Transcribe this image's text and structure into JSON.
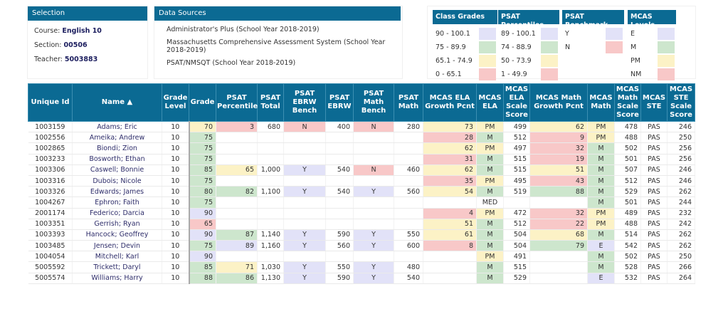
{
  "selection": {
    "title": "Selection",
    "course_label": "Course:",
    "course": "English 10",
    "section_label": "Section:",
    "section": "00506",
    "teacher_label": "Teacher:",
    "teacher": "5003883"
  },
  "data_sources": {
    "title": "Data Sources",
    "items": [
      "Administrator's Plus (School Year 2018-2019)",
      "Massachusetts Comprehensive Assessment System (School Year 2018-2019)",
      "PSAT/NMSQT (School Year 2018-2019)"
    ]
  },
  "legends": [
    {
      "title": "Class Grades",
      "items": [
        {
          "label": "90 - 100.1",
          "color": "#e2e2f8"
        },
        {
          "label": "75 - 89.9",
          "color": "#cde6cd"
        },
        {
          "label": "65.1 - 74.9",
          "color": "#fcf2c6"
        },
        {
          "label": "0 - 65.1",
          "color": "#f8c8c8"
        }
      ]
    },
    {
      "title": "PSAT Percentiles",
      "items": [
        {
          "label": "89 - 100.1",
          "color": "#e2e2f8"
        },
        {
          "label": "74 - 88.9",
          "color": "#cde6cd"
        },
        {
          "label": "50 - 73.9",
          "color": "#fcf2c6"
        },
        {
          "label": "1 - 49.9",
          "color": "#f8c8c8"
        }
      ]
    },
    {
      "title": "PSAT Benchmark",
      "items": [
        {
          "label": "Y",
          "color": "#e2e2f8"
        },
        {
          "label": "N",
          "color": "#f8c8c8"
        }
      ]
    },
    {
      "title": "MCAS Levels",
      "items": [
        {
          "label": "E",
          "color": "#e2e2f8"
        },
        {
          "label": "M",
          "color": "#cde6cd"
        },
        {
          "label": "PM",
          "color": "#fcf2c6"
        },
        {
          "label": "NM",
          "color": "#f8c8c8"
        }
      ]
    }
  ],
  "table": {
    "columns": [
      "Unique Id",
      "Name ▲",
      "Grade Level",
      "Grade",
      "PSAT Percentile",
      "PSAT Total",
      "PSAT EBRW Bench",
      "PSAT EBRW",
      "PSAT Math Bench",
      "PSAT Math",
      "MCAS ELA Growth Pcnt",
      "MCAS ELA",
      "MCAS ELA Scale Score",
      "MCAS Math Growth Pcnt",
      "MCAS Math",
      "MCAS Math Scale Score",
      "MCAS STE",
      "MCAS STE Scale Score"
    ],
    "rows": [
      [
        "1003159",
        "Adams; Eric",
        "10",
        "70",
        "3",
        "680",
        "N",
        "400",
        "N",
        "280",
        "73",
        "PM",
        "499",
        "62",
        "PM",
        "478",
        "PAS",
        "246"
      ],
      [
        "1002556",
        "Ameika; Andrew",
        "10",
        "75",
        "",
        "",
        "",
        "",
        "",
        "",
        "28",
        "M",
        "512",
        "9",
        "PM",
        "488",
        "PAS",
        "250"
      ],
      [
        "1002865",
        "Biondi; Zion",
        "10",
        "75",
        "",
        "",
        "",
        "",
        "",
        "",
        "62",
        "PM",
        "497",
        "32",
        "M",
        "502",
        "PAS",
        "256"
      ],
      [
        "1003233",
        "Bosworth; Ethan",
        "10",
        "75",
        "",
        "",
        "",
        "",
        "",
        "",
        "31",
        "M",
        "515",
        "19",
        "M",
        "501",
        "PAS",
        "256"
      ],
      [
        "1003306",
        "Caswell; Bonnie",
        "10",
        "85",
        "65",
        "1,000",
        "Y",
        "540",
        "N",
        "460",
        "62",
        "M",
        "515",
        "51",
        "M",
        "507",
        "PAS",
        "246"
      ],
      [
        "1003316",
        "Dubois; Nicole",
        "10",
        "75",
        "",
        "",
        "",
        "",
        "",
        "",
        "35",
        "PM",
        "495",
        "43",
        "M",
        "512",
        "PAS",
        "246"
      ],
      [
        "1003326",
        "Edwards; James",
        "10",
        "80",
        "82",
        "1,100",
        "Y",
        "540",
        "Y",
        "560",
        "54",
        "M",
        "519",
        "88",
        "M",
        "529",
        "PAS",
        "262"
      ],
      [
        "1004267",
        "Ephron; Faith",
        "10",
        "75",
        "",
        "",
        "",
        "",
        "",
        "",
        "",
        "MED",
        "",
        "",
        "M",
        "501",
        "PAS",
        "244"
      ],
      [
        "2001174",
        "Federico; Darcia",
        "10",
        "90",
        "",
        "",
        "",
        "",
        "",
        "",
        "4",
        "PM",
        "472",
        "32",
        "PM",
        "489",
        "PAS",
        "232"
      ],
      [
        "1003351",
        "Gerrish; Ryan",
        "10",
        "65",
        "",
        "",
        "",
        "",
        "",
        "",
        "51",
        "M",
        "512",
        "22",
        "PM",
        "488",
        "PAS",
        "242"
      ],
      [
        "1003393",
        "Hancock; Geoffrey",
        "10",
        "90",
        "87",
        "1,140",
        "Y",
        "590",
        "Y",
        "550",
        "61",
        "M",
        "504",
        "68",
        "M",
        "514",
        "PAS",
        "262"
      ],
      [
        "1003485",
        "Jensen; Devin",
        "10",
        "75",
        "89",
        "1,160",
        "Y",
        "560",
        "Y",
        "600",
        "8",
        "M",
        "504",
        "79",
        "E",
        "542",
        "PAS",
        "262"
      ],
      [
        "1004054",
        "Mitchell; Karl",
        "10",
        "90",
        "",
        "",
        "",
        "",
        "",
        "",
        "",
        "PM",
        "491",
        "",
        "M",
        "502",
        "PAS",
        "250"
      ],
      [
        "5005592",
        "Trickett; Daryl",
        "10",
        "85",
        "71",
        "1,030",
        "Y",
        "550",
        "Y",
        "480",
        "",
        "M",
        "515",
        "",
        "M",
        "528",
        "PAS",
        "266"
      ],
      [
        "5005574",
        "Williams; Harry",
        "10",
        "88",
        "86",
        "1,130",
        "Y",
        "590",
        "Y",
        "540",
        "",
        "M",
        "529",
        "",
        "E",
        "532",
        "PAS",
        "264"
      ]
    ]
  }
}
